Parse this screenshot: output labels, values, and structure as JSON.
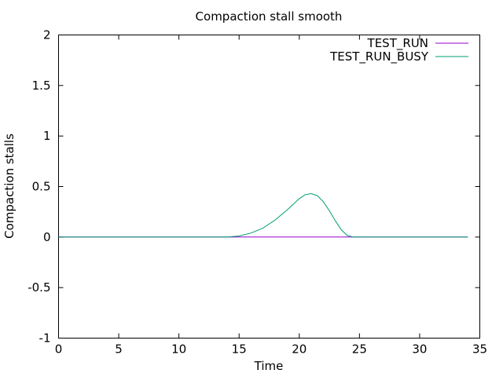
{
  "chart_data": {
    "type": "line",
    "title": "Compaction stall smooth",
    "xlabel": "Time",
    "ylabel": "Compaction stalls",
    "xlim": [
      0,
      35
    ],
    "ylim": [
      -1,
      2
    ],
    "xticks": [
      "0",
      "5",
      "10",
      "15",
      "20",
      "25",
      "30",
      "35"
    ],
    "yticks": [
      "2",
      "1.5",
      "1",
      "0.5",
      "0",
      "-0.5",
      "-1"
    ],
    "grid": false,
    "legend": "top-right",
    "series": [
      {
        "name": "TEST_RUN",
        "color": "#9400d3",
        "x": [
          0,
          34
        ],
        "y": [
          0,
          0
        ]
      },
      {
        "name": "TEST_RUN_BUSY",
        "color": "#009e73",
        "x": [
          0,
          14,
          15,
          16,
          17,
          18,
          19,
          20,
          20.5,
          21,
          21.5,
          22,
          22.5,
          23,
          23.5,
          24,
          24.5,
          25,
          34
        ],
        "y": [
          0,
          0,
          0.01,
          0.04,
          0.09,
          0.17,
          0.27,
          0.38,
          0.42,
          0.43,
          0.41,
          0.35,
          0.26,
          0.16,
          0.07,
          0.015,
          0,
          0,
          0
        ]
      }
    ]
  }
}
